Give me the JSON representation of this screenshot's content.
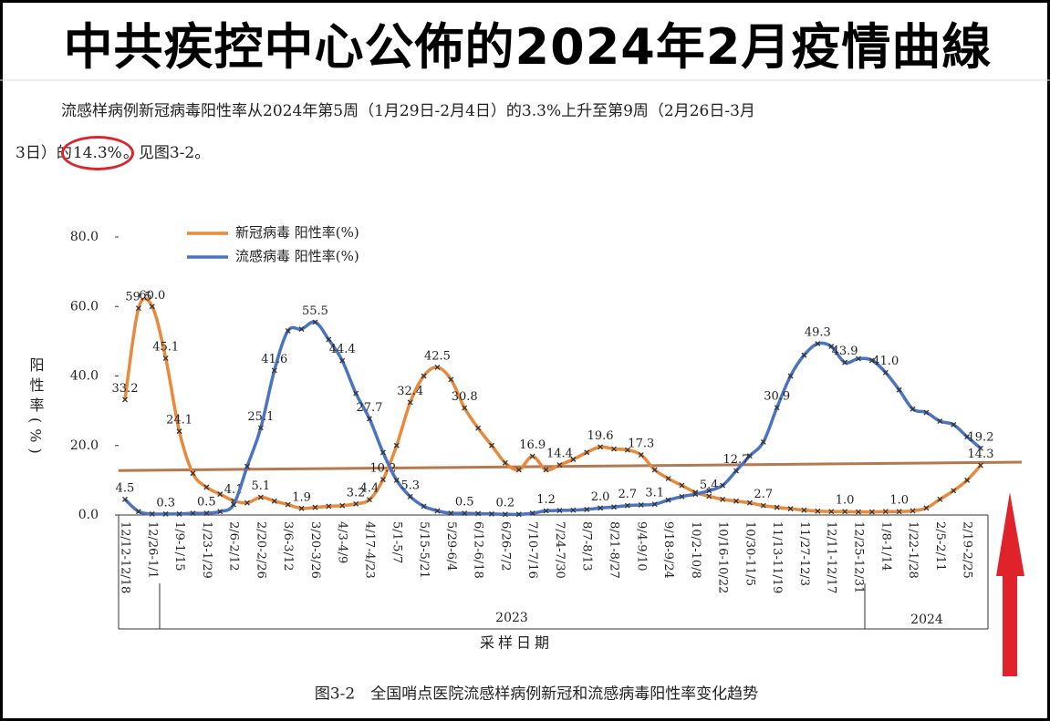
{
  "header": {
    "title": "中共疾控中心公佈的2024年2月疫情曲線"
  },
  "paragraph": {
    "line1": "流感样病例新冠病毒阳性率从2024年第5周（1月29日-2月4日）的3.3%上升至第9周（2月26日-3月",
    "line2_before": "3日）的",
    "highlight": "14.3%",
    "after": "。见图3-2。"
  },
  "caption": "图3-2　全国哨点医院流感样病例新冠和流感病毒阳性率变化趋势",
  "chart_data": {
    "type": "line",
    "ylabel": "阳性率(%)",
    "xlabel": "采样日期",
    "year_labels": [
      "2023",
      "2024"
    ],
    "categories": [
      "12/12-12/18",
      null,
      "12/26-1/1",
      null,
      "1/9-1/15",
      null,
      "1/23-1/29",
      null,
      "2/6-2/12",
      null,
      "2/20-2/26",
      null,
      "3/6-3/12",
      null,
      "3/20-3/26",
      null,
      "4/3-4/9",
      null,
      "4/17-4/23",
      null,
      "5/1-5/7",
      null,
      "5/15-5/21",
      null,
      "5/29-6/4",
      null,
      "6/12-6/18",
      null,
      "6/26-7/2",
      null,
      "7/10-7/16",
      null,
      "7/24-7/30",
      null,
      "8/7-8/13",
      null,
      "8/21-8/27",
      null,
      "9/4-9/10",
      null,
      "9/18-9/24",
      null,
      "10/2-10/8",
      null,
      "10/16-10/22",
      null,
      "10/30-11/5",
      null,
      "11/13-11/19",
      null,
      "11/27-12/3",
      null,
      "12/11-12/17",
      null,
      "12/25-12/31",
      null,
      "1/8-1/14",
      null,
      "1/22-1/28",
      null,
      "2/5-2/11",
      null,
      "2/19-2/25",
      null
    ],
    "series": [
      {
        "name": "新冠病毒 阳性率(%)",
        "color": "#e8893c",
        "values": [
          33.2,
          59.5,
          60.0,
          45.1,
          24.1,
          12,
          8,
          6,
          4.1,
          3.5,
          5.1,
          4,
          3,
          1.9,
          2.2,
          2.5,
          2.7,
          3.2,
          4.4,
          10.2,
          20,
          32.4,
          40,
          42.5,
          39,
          30.8,
          25,
          20,
          15,
          13,
          16.9,
          13,
          14.4,
          16,
          18,
          19.6,
          19,
          18.7,
          17.3,
          13,
          10.5,
          8.5,
          6.5,
          5.4,
          4.5,
          4,
          3.5,
          2.7,
          2.2,
          1.8,
          1.4,
          1.1,
          1.0,
          1.0,
          0.9,
          0.9,
          1.0,
          1.0,
          1.2,
          2,
          4.5,
          7,
          10,
          14.3
        ],
        "value_labels": [
          "33.2",
          "59.5",
          "60.0",
          "45.1",
          "24.1",
          null,
          null,
          null,
          "4.1",
          null,
          "5.1",
          null,
          null,
          "1.9",
          null,
          null,
          null,
          "3.2",
          "4.4",
          "10.2",
          null,
          "32.4",
          null,
          "42.5",
          null,
          "30.8",
          null,
          null,
          null,
          null,
          "16.9",
          null,
          "14.4",
          null,
          null,
          "19.6",
          null,
          null,
          "17.3",
          null,
          null,
          null,
          null,
          "5.4",
          null,
          null,
          null,
          "2.7",
          null,
          null,
          null,
          null,
          null,
          "1.0",
          null,
          null,
          null,
          "1.0",
          null,
          null,
          null,
          null,
          null,
          "14.3"
        ]
      },
      {
        "name": "流感病毒 阳性率(%)",
        "color": "#4a74c2",
        "values": [
          4.5,
          1.0,
          0.3,
          0.3,
          0.3,
          0.5,
          0.5,
          1,
          3,
          14,
          25.1,
          41.6,
          53,
          53.5,
          55.5,
          50.5,
          44.4,
          35,
          27.7,
          18,
          10,
          5.3,
          2.5,
          1.2,
          0.5,
          0.5,
          0.4,
          0.3,
          0.2,
          0.2,
          0.5,
          1.2,
          1.3,
          1.4,
          1.6,
          2.0,
          2.3,
          2.7,
          2.9,
          3.1,
          4.3,
          5.3,
          6,
          7,
          8.5,
          12.7,
          17,
          21,
          30.9,
          40,
          46,
          49.3,
          48.5,
          43.9,
          45,
          44.5,
          41.0,
          36,
          30.5,
          29.5,
          27,
          26,
          22.5,
          19.2
        ],
        "value_labels": [
          "4.5",
          null,
          null,
          "0.3",
          null,
          null,
          "0.5",
          null,
          null,
          null,
          "25.1",
          "41.6",
          null,
          null,
          "55.5",
          null,
          "44.4",
          null,
          "27.7",
          null,
          null,
          "5.3",
          null,
          null,
          null,
          "0.5",
          null,
          null,
          "0.2",
          null,
          null,
          "1.2",
          null,
          null,
          null,
          "2.0",
          null,
          "2.7",
          null,
          "3.1",
          null,
          null,
          null,
          null,
          null,
          "12.7",
          null,
          null,
          "30.9",
          null,
          null,
          "49.3",
          null,
          "43.9",
          null,
          null,
          "41.0",
          null,
          null,
          null,
          null,
          null,
          null,
          "19.2"
        ]
      }
    ],
    "reference_line": {
      "start": 12.8,
      "end": 15.2,
      "color": "#b5784f"
    },
    "ylim": [
      0,
      80
    ],
    "yticks": [
      {
        "value": 0,
        "label": "0.0"
      },
      {
        "value": 20,
        "label": "20.0"
      },
      {
        "value": 40,
        "label": "40.0"
      },
      {
        "value": 60,
        "label": "60.0"
      },
      {
        "value": 80,
        "label": "80.0"
      }
    ],
    "legend": "top-left"
  }
}
